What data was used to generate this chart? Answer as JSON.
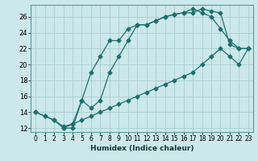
{
  "xlabel": "Humidex (Indice chaleur)",
  "bg_color": "#cce8ea",
  "grid_color": "#aacdd0",
  "line_color": "#1e7070",
  "xlim": [
    -0.5,
    23.5
  ],
  "ylim": [
    11.5,
    27.5
  ],
  "xticks": [
    0,
    1,
    2,
    3,
    4,
    5,
    6,
    7,
    8,
    9,
    10,
    11,
    12,
    13,
    14,
    15,
    16,
    17,
    18,
    19,
    20,
    21,
    22,
    23
  ],
  "yticks": [
    12,
    14,
    16,
    18,
    20,
    22,
    24,
    26
  ],
  "line1_x": [
    0,
    1,
    2,
    3,
    4,
    5,
    6,
    7,
    8,
    9,
    10,
    11,
    12,
    13,
    14,
    15,
    16,
    17,
    18,
    19,
    20,
    21,
    22,
    23
  ],
  "line1_y": [
    14,
    13.5,
    13,
    12,
    12,
    15.5,
    19,
    21,
    23,
    23,
    24.5,
    25,
    25,
    25.5,
    26,
    26.3,
    26.5,
    26.5,
    27,
    26.7,
    26.5,
    22.5,
    22,
    22
  ],
  "line2_x": [
    0,
    1,
    2,
    3,
    4,
    5,
    6,
    7,
    8,
    9,
    10,
    11,
    12,
    13,
    14,
    15,
    16,
    17,
    18,
    19,
    20,
    21,
    22,
    23
  ],
  "line2_y": [
    14,
    13.5,
    13,
    12.2,
    12.5,
    13,
    13.5,
    14,
    14.5,
    15,
    15.5,
    16,
    16.5,
    17,
    17.5,
    18,
    18.5,
    19,
    20,
    21,
    22,
    21,
    20,
    22
  ],
  "line3_x": [
    3,
    4,
    5,
    6,
    7,
    8,
    9,
    10,
    11,
    12,
    13,
    14,
    15,
    16,
    17,
    18,
    19,
    20,
    21,
    22,
    23
  ],
  "line3_y": [
    12,
    12.5,
    15.5,
    14.5,
    15.5,
    19,
    21,
    23,
    25,
    25,
    25.5,
    26,
    26.3,
    26.5,
    27,
    26.5,
    26,
    24.5,
    23,
    22,
    22
  ]
}
